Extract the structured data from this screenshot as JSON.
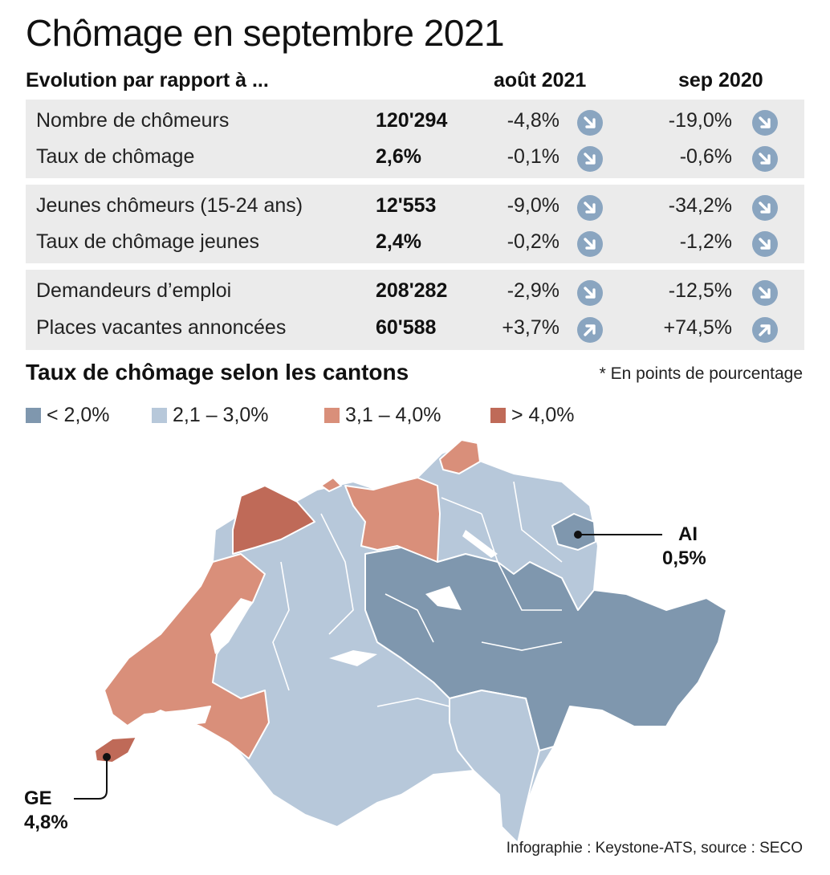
{
  "title": "Chômage en septembre 2021",
  "table": {
    "header_label": "Evolution par rapport à ...",
    "col_1": "août 2021",
    "col_2": "sep 2020",
    "groups": [
      [
        {
          "label": "Nombre de chômeurs",
          "value": "120'294",
          "pct_1": "-4,8%",
          "trend_1": "down",
          "pct_2": "-19,0%",
          "trend_2": "down"
        },
        {
          "label": "Taux de chômage",
          "value": "2,6%",
          "pct_1": "-0,1%",
          "trend_1": "down",
          "pct_2": "-0,6%",
          "trend_2": "down"
        }
      ],
      [
        {
          "label": "Jeunes chômeurs (15-24 ans)",
          "value": "12'553",
          "pct_1": "-9,0%",
          "trend_1": "down",
          "pct_2": "-34,2%",
          "trend_2": "down"
        },
        {
          "label": "Taux de chômage jeunes",
          "value": "2,4%",
          "pct_1": "-0,2%",
          "trend_1": "down",
          "pct_2": "-1,2%",
          "trend_2": "down"
        }
      ],
      [
        {
          "label": "Demandeurs d’emploi",
          "value": "208'282",
          "pct_1": "-2,9%",
          "trend_1": "down",
          "pct_2": "-12,5%",
          "trend_2": "down"
        },
        {
          "label": "Places vacantes annoncées",
          "value": "60'588",
          "pct_1": "+3,7%",
          "trend_1": "up",
          "pct_2": "+74,5%",
          "trend_2": "up"
        }
      ]
    ]
  },
  "map_section": {
    "title": "Taux de chômage selon les cantons",
    "note": "* En points de pourcentage",
    "legend": [
      {
        "label": "< 2,0%",
        "color": "#7f97ae"
      },
      {
        "label": "2,1 – 3,0%",
        "color": "#b7c8da"
      },
      {
        "label": "3,1 – 4,0%",
        "color": "#d98f7a"
      },
      {
        "label": "> 4,0%",
        "color": "#bf6a58"
      }
    ],
    "callouts": {
      "ai": {
        "code": "AI",
        "value": "0,5%"
      },
      "ge": {
        "code": "GE",
        "value": "4,8%"
      }
    }
  },
  "credit": "Infographie : Keystone-ATS, source : SECO",
  "colors": {
    "arrow_circle": "#8aa5c0",
    "table_bg": "#ebebeb"
  }
}
